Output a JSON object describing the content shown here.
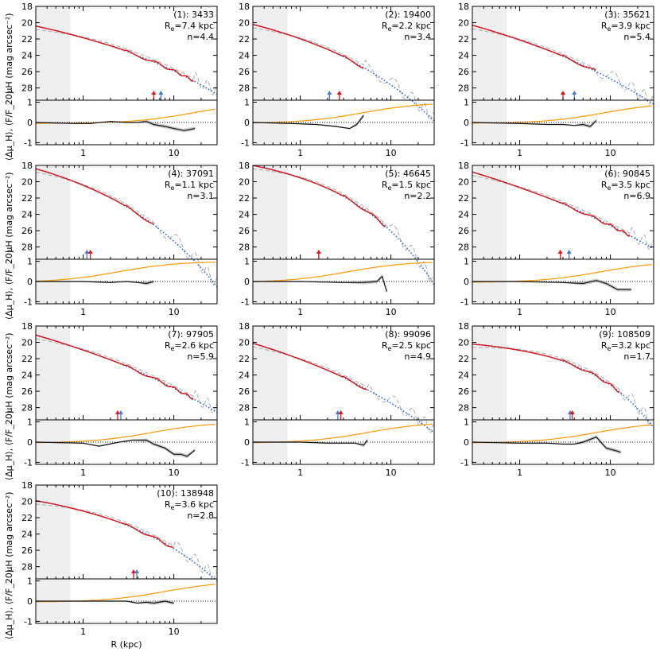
{
  "figure": {
    "xlabel": "R (kpc)",
    "ylabel_top": "μH (mag arcsec⁻²)",
    "ylabel_bottom": "⟨Δμ_H⟩, ⟨F/F_20⟩",
    "colors": {
      "observed": "#dd1111",
      "model": "#2266cc",
      "psf": "#aaaaaa",
      "residual": "#111111",
      "flux": "#ff9900",
      "shade": "#eeeeee",
      "arrow_red": "#ee1111",
      "arrow_blue": "#4477dd"
    }
  },
  "chart_data": [
    {
      "type": "line",
      "panel": "(1): 3433",
      "id_label": "(1): 3433",
      "re_label": "R",
      "re_value": "=7.4 kpc",
      "n_label": "n=4.4",
      "re_kpc": 7.4,
      "n": 4.4,
      "mu0": 20.4,
      "mu_end": 27.2,
      "xmax_data": 17,
      "arrows": [
        {
          "color": "red",
          "r": 6.0
        },
        {
          "color": "blue",
          "r": 7.2
        }
      ],
      "resid": [
        [
          0.3,
          0
        ],
        [
          0.8,
          -0.05
        ],
        [
          1.2,
          -0.05
        ],
        [
          2,
          0.05
        ],
        [
          3,
          0
        ],
        [
          4,
          0
        ],
        [
          5,
          0.05
        ],
        [
          6,
          -0.1
        ],
        [
          8,
          -0.2
        ],
        [
          10,
          -0.3
        ],
        [
          13,
          -0.4
        ],
        [
          17,
          -0.3
        ]
      ],
      "xlim": [
        0.3,
        30
      ],
      "ylim_top": [
        29.5,
        18
      ],
      "ylim_bottom": [
        -1.1,
        1.1
      ],
      "yticks_top": [
        18,
        20,
        22,
        24,
        26,
        28
      ],
      "yticks_bottom": [
        1,
        0,
        -1
      ],
      "xticks": [
        1,
        10
      ],
      "show_xlabel": true,
      "show_ylabel": true
    },
    {
      "type": "line",
      "panel": "(2): 19400",
      "id_label": "(2): 19400",
      "re_label": "R",
      "re_value": "=2.2 kpc",
      "n_label": "n=3.4",
      "re_kpc": 2.2,
      "n": 3.4,
      "mu0": 20.2,
      "mu_end": 25.5,
      "xmax_data": 5,
      "arrows": [
        {
          "color": "blue",
          "r": 2.1
        },
        {
          "color": "red",
          "r": 2.7
        }
      ],
      "resid": [
        [
          0.3,
          0
        ],
        [
          0.8,
          -0.05
        ],
        [
          1.5,
          -0.1
        ],
        [
          2.5,
          -0.2
        ],
        [
          3.5,
          -0.3
        ],
        [
          4.2,
          -0.1
        ],
        [
          5,
          0.35
        ]
      ],
      "xlim": [
        0.3,
        30
      ],
      "ylim_top": [
        29.5,
        18
      ],
      "ylim_bottom": [
        -1.1,
        1.1
      ],
      "yticks_top": [
        18,
        20,
        22,
        24,
        26,
        28
      ],
      "yticks_bottom": [
        1,
        0,
        -1
      ],
      "xticks": [
        1,
        10
      ],
      "show_xlabel": true,
      "show_ylabel": false
    },
    {
      "type": "line",
      "panel": "(3): 35621",
      "id_label": "(3): 35621",
      "re_label": "R",
      "re_value": "=3.9 kpc",
      "n_label": "n=5.4",
      "re_kpc": 3.9,
      "n": 5.4,
      "mu0": 20.3,
      "mu_end": 26.0,
      "xmax_data": 7,
      "arrows": [
        {
          "color": "red",
          "r": 3.0
        },
        {
          "color": "blue",
          "r": 4.0
        }
      ],
      "resid": [
        [
          0.3,
          0
        ],
        [
          1,
          -0.05
        ],
        [
          2,
          -0.1
        ],
        [
          3,
          -0.1
        ],
        [
          4,
          -0.15
        ],
        [
          5,
          -0.1
        ],
        [
          6,
          -0.2
        ],
        [
          7,
          0.1
        ]
      ],
      "xlim": [
        0.3,
        30
      ],
      "ylim_top": [
        29.5,
        18
      ],
      "ylim_bottom": [
        -1.1,
        1.1
      ],
      "yticks_top": [
        18,
        20,
        22,
        24,
        26,
        28
      ],
      "yticks_bottom": [
        1,
        0,
        -1
      ],
      "xticks": [
        1,
        10
      ],
      "show_xlabel": true,
      "show_ylabel": false
    },
    {
      "type": "line",
      "panel": "(4): 37091",
      "id_label": "(4): 37091",
      "re_label": "R",
      "re_value": "=1.1 kpc",
      "n_label": "n=3.1",
      "re_kpc": 1.1,
      "n": 3.1,
      "mu0": 18.4,
      "mu_end": 25.3,
      "xmax_data": 6,
      "arrows": [
        {
          "color": "blue",
          "r": 1.1
        },
        {
          "color": "red",
          "r": 1.2
        }
      ],
      "resid": [
        [
          0.3,
          0
        ],
        [
          1,
          0
        ],
        [
          2,
          -0.05
        ],
        [
          3,
          0
        ],
        [
          4,
          -0.05
        ],
        [
          5,
          -0.1
        ],
        [
          6,
          0
        ]
      ],
      "xlim": [
        0.3,
        30
      ],
      "ylim_top": [
        29.5,
        18
      ],
      "ylim_bottom": [
        -1.1,
        1.1
      ],
      "yticks_top": [
        18,
        20,
        22,
        24,
        26,
        28
      ],
      "yticks_bottom": [
        1,
        0,
        -1
      ],
      "xticks": [
        1,
        10
      ],
      "show_xlabel": true,
      "show_ylabel": true
    },
    {
      "type": "line",
      "panel": "(5): 46645",
      "id_label": "(5): 46645",
      "re_label": "R",
      "re_value": "=1.5 kpc",
      "n_label": "n=2.2",
      "re_kpc": 1.5,
      "n": 2.2,
      "mu0": 18.0,
      "mu_end": 25.6,
      "xmax_data": 9,
      "arrows": [
        {
          "color": "blue",
          "r": 1.6
        },
        {
          "color": "red",
          "r": 1.6
        }
      ],
      "resid": [
        [
          0.3,
          0
        ],
        [
          1,
          0
        ],
        [
          3,
          -0.05
        ],
        [
          5,
          -0.05
        ],
        [
          7,
          0
        ],
        [
          8,
          0.25
        ],
        [
          9,
          -0.5
        ]
      ],
      "xlim": [
        0.3,
        30
      ],
      "ylim_top": [
        29.5,
        18
      ],
      "ylim_bottom": [
        -1.1,
        1.1
      ],
      "yticks_top": [
        18,
        20,
        22,
        24,
        26,
        28
      ],
      "yticks_bottom": [
        1,
        0,
        -1
      ],
      "xticks": [
        1,
        10
      ],
      "show_xlabel": true,
      "show_ylabel": false
    },
    {
      "type": "line",
      "panel": "(6): 90845",
      "id_label": "(6): 90845",
      "re_label": "R",
      "re_value": "=3.5 kpc",
      "n_label": "n=6.9",
      "re_kpc": 3.5,
      "n": 6.9,
      "mu0": 18.8,
      "mu_end": 26.7,
      "xmax_data": 17,
      "arrows": [
        {
          "color": "red",
          "r": 2.8
        },
        {
          "color": "blue",
          "r": 3.5
        }
      ],
      "resid": [
        [
          0.3,
          0
        ],
        [
          1,
          0
        ],
        [
          3,
          -0.05
        ],
        [
          5,
          -0.1
        ],
        [
          7,
          0.05
        ],
        [
          9,
          -0.1
        ],
        [
          12,
          -0.4
        ],
        [
          17,
          -0.4
        ]
      ],
      "xlim": [
        0.3,
        30
      ],
      "ylim_top": [
        29.5,
        18
      ],
      "ylim_bottom": [
        -1.1,
        1.1
      ],
      "yticks_top": [
        18,
        20,
        22,
        24,
        26,
        28
      ],
      "yticks_bottom": [
        1,
        0,
        -1
      ],
      "xticks": [
        1,
        10
      ],
      "show_xlabel": true,
      "show_ylabel": false
    },
    {
      "type": "line",
      "panel": "(7): 97905",
      "id_label": "(7): 97905",
      "re_label": "R",
      "re_value": "=2.6 kpc",
      "n_label": "n=5.9",
      "re_kpc": 2.6,
      "n": 5.9,
      "mu0": 19.1,
      "mu_end": 27.0,
      "xmax_data": 17,
      "arrows": [
        {
          "color": "red",
          "r": 2.4
        },
        {
          "color": "blue",
          "r": 2.6
        }
      ],
      "resid": [
        [
          0.3,
          0
        ],
        [
          1,
          -0.05
        ],
        [
          1.5,
          -0.2
        ],
        [
          2.5,
          0
        ],
        [
          3.5,
          0.1
        ],
        [
          5,
          0.1
        ],
        [
          6,
          -0.1
        ],
        [
          8,
          -0.3
        ],
        [
          10,
          -0.6
        ],
        [
          12,
          -0.6
        ],
        [
          14,
          -0.7
        ],
        [
          17,
          -0.4
        ]
      ],
      "xlim": [
        0.3,
        30
      ],
      "ylim_top": [
        29.5,
        18
      ],
      "ylim_bottom": [
        -1.1,
        1.1
      ],
      "yticks_top": [
        18,
        20,
        22,
        24,
        26,
        28
      ],
      "yticks_bottom": [
        1,
        0,
        -1
      ],
      "xticks": [
        1,
        10
      ],
      "show_xlabel": true,
      "show_ylabel": true
    },
    {
      "type": "line",
      "panel": "(8): 99096",
      "id_label": "(8): 99096",
      "re_label": "R",
      "re_value": "=2.5 kpc",
      "n_label": "n=4.9",
      "re_kpc": 2.5,
      "n": 4.9,
      "mu0": 20.1,
      "mu_end": 25.8,
      "xmax_data": 5.5,
      "arrows": [
        {
          "color": "blue",
          "r": 2.6
        },
        {
          "color": "red",
          "r": 2.8
        }
      ],
      "resid": [
        [
          0.3,
          0
        ],
        [
          1,
          0
        ],
        [
          2,
          -0.05
        ],
        [
          3,
          -0.05
        ],
        [
          4,
          -0.05
        ],
        [
          5,
          -0.15
        ],
        [
          5.5,
          0.1
        ]
      ],
      "xlim": [
        0.3,
        30
      ],
      "ylim_top": [
        29.5,
        18
      ],
      "ylim_bottom": [
        -1.1,
        1.1
      ],
      "yticks_top": [
        18,
        20,
        22,
        24,
        26,
        28
      ],
      "yticks_bottom": [
        1,
        0,
        -1
      ],
      "xticks": [
        1,
        10
      ],
      "show_xlabel": true,
      "show_ylabel": false
    },
    {
      "type": "line",
      "panel": "(9): 108509",
      "id_label": "(9): 108509",
      "re_label": "R",
      "re_value": "=3.2 kpc",
      "n_label": "n=1.7",
      "re_kpc": 3.2,
      "n": 1.7,
      "mu0": 20.2,
      "mu_end": 26.2,
      "xmax_data": 13,
      "arrows": [
        {
          "color": "blue",
          "r": 3.6
        },
        {
          "color": "red",
          "r": 3.8
        }
      ],
      "resid": [
        [
          0.3,
          0
        ],
        [
          1,
          -0.05
        ],
        [
          2,
          -0.05
        ],
        [
          3,
          -0.1
        ],
        [
          4,
          -0.1
        ],
        [
          5,
          0
        ],
        [
          7,
          0.25
        ],
        [
          9,
          -0.3
        ],
        [
          11,
          -0.4
        ],
        [
          13,
          -0.5
        ]
      ],
      "xlim": [
        0.3,
        30
      ],
      "ylim_top": [
        29.5,
        18
      ],
      "ylim_bottom": [
        -1.1,
        1.1
      ],
      "yticks_top": [
        18,
        20,
        22,
        24,
        26,
        28
      ],
      "yticks_bottom": [
        1,
        0,
        -1
      ],
      "xticks": [
        1,
        10
      ],
      "show_xlabel": true,
      "show_ylabel": false
    },
    {
      "type": "line",
      "panel": "(10): 138948",
      "id_label": "(10): 138948",
      "re_label": "R",
      "re_value": "=3.6 kpc",
      "n_label": "n=2.8",
      "re_kpc": 3.6,
      "n": 2.8,
      "mu0": 19.9,
      "mu_end": 25.8,
      "xmax_data": 10,
      "arrows": [
        {
          "color": "red",
          "r": 3.6
        },
        {
          "color": "blue",
          "r": 3.9
        }
      ],
      "resid": [
        [
          0.3,
          0
        ],
        [
          1,
          0
        ],
        [
          2,
          0
        ],
        [
          3,
          0
        ],
        [
          4,
          -0.1
        ],
        [
          5,
          -0.05
        ],
        [
          6,
          -0.1
        ],
        [
          8,
          0
        ],
        [
          10,
          -0.1
        ]
      ],
      "xlim": [
        0.3,
        30
      ],
      "ylim_top": [
        29.5,
        18
      ],
      "ylim_bottom": [
        -1.1,
        1.1
      ],
      "yticks_top": [
        18,
        20,
        22,
        24,
        26,
        28
      ],
      "yticks_bottom": [
        1,
        0,
        -1
      ],
      "xticks": [
        1,
        10
      ],
      "show_xlabel": true,
      "show_ylabel": true
    }
  ]
}
